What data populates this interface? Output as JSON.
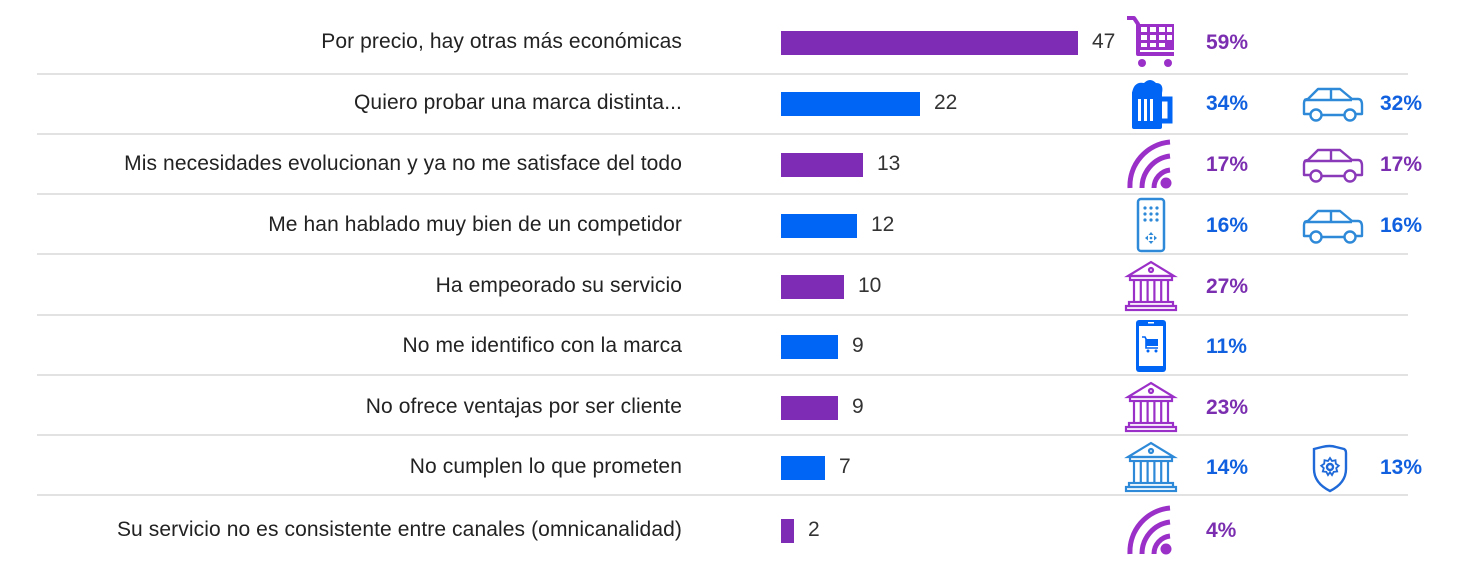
{
  "chart_data": {
    "type": "bar",
    "orientation": "horizontal",
    "title": "",
    "xlabel": "",
    "ylabel": "",
    "xlim": [
      0,
      47
    ],
    "grid": false,
    "categories": [
      "Por precio, hay otras más económicas",
      "Quiero probar una marca distinta...",
      "Mis necesidades evolucionan y ya no me satisface del todo",
      "Me han hablado muy bien de un competidor",
      "Ha empeorado su servicio",
      "No me identifico con la marca",
      "No ofrece ventajas por ser cliente",
      "No cumplen lo que prometen",
      "Su servicio no es consistente entre canales (omnicanalidad)"
    ],
    "values": [
      47,
      22,
      13,
      12,
      10,
      9,
      9,
      7,
      2
    ],
    "bar_colors": [
      "#7e2bb5",
      "#0064f5",
      "#7e2bb5",
      "#0064f5",
      "#7e2bb5",
      "#0064f5",
      "#7e2bb5",
      "#0064f5",
      "#7e2bb5"
    ],
    "annotations": [
      {
        "icon": "shopping-cart-icon",
        "icon_color": "#9b30c8",
        "pct": "59%",
        "pct_color": "#7b2fb0",
        "second": null
      },
      {
        "icon": "beer-mug-icon",
        "icon_color": "#0064f5",
        "pct": "34%",
        "pct_color": "#1060e0",
        "second": {
          "icon": "car-icon",
          "icon_color": "#2e8ad8",
          "pct": "32%",
          "pct_color": "#1060e0"
        }
      },
      {
        "icon": "wifi-signal-icon",
        "icon_color": "#9b30c8",
        "pct": "17%",
        "pct_color": "#7b2fb0",
        "second": {
          "icon": "car-icon",
          "icon_color": "#8a3ab8",
          "pct": "17%",
          "pct_color": "#7b2fb0"
        }
      },
      {
        "icon": "tv-remote-icon",
        "icon_color": "#2e8ad8",
        "pct": "16%",
        "pct_color": "#1060e0",
        "second": {
          "icon": "car-icon",
          "icon_color": "#2e8ad8",
          "pct": "16%",
          "pct_color": "#1060e0"
        }
      },
      {
        "icon": "bank-icon",
        "icon_color": "#9b30c8",
        "pct": "27%",
        "pct_color": "#7b2fb0",
        "second": null
      },
      {
        "icon": "mobile-shopping-icon",
        "icon_color": "#0064f5",
        "pct": "11%",
        "pct_color": "#1060e0",
        "second": null
      },
      {
        "icon": "bank-icon",
        "icon_color": "#9b30c8",
        "pct": "23%",
        "pct_color": "#7b2fb0",
        "second": null
      },
      {
        "icon": "bank-icon",
        "icon_color": "#2e8ad8",
        "pct": "14%",
        "pct_color": "#1060e0",
        "second": {
          "icon": "shield-gear-icon",
          "icon_color": "#1f6ad8",
          "pct": "13%",
          "pct_color": "#1060e0"
        }
      },
      {
        "icon": "wifi-signal-icon",
        "icon_color": "#9b30c8",
        "pct": "4%",
        "pct_color": "#7b2fb0",
        "second": null
      }
    ]
  }
}
